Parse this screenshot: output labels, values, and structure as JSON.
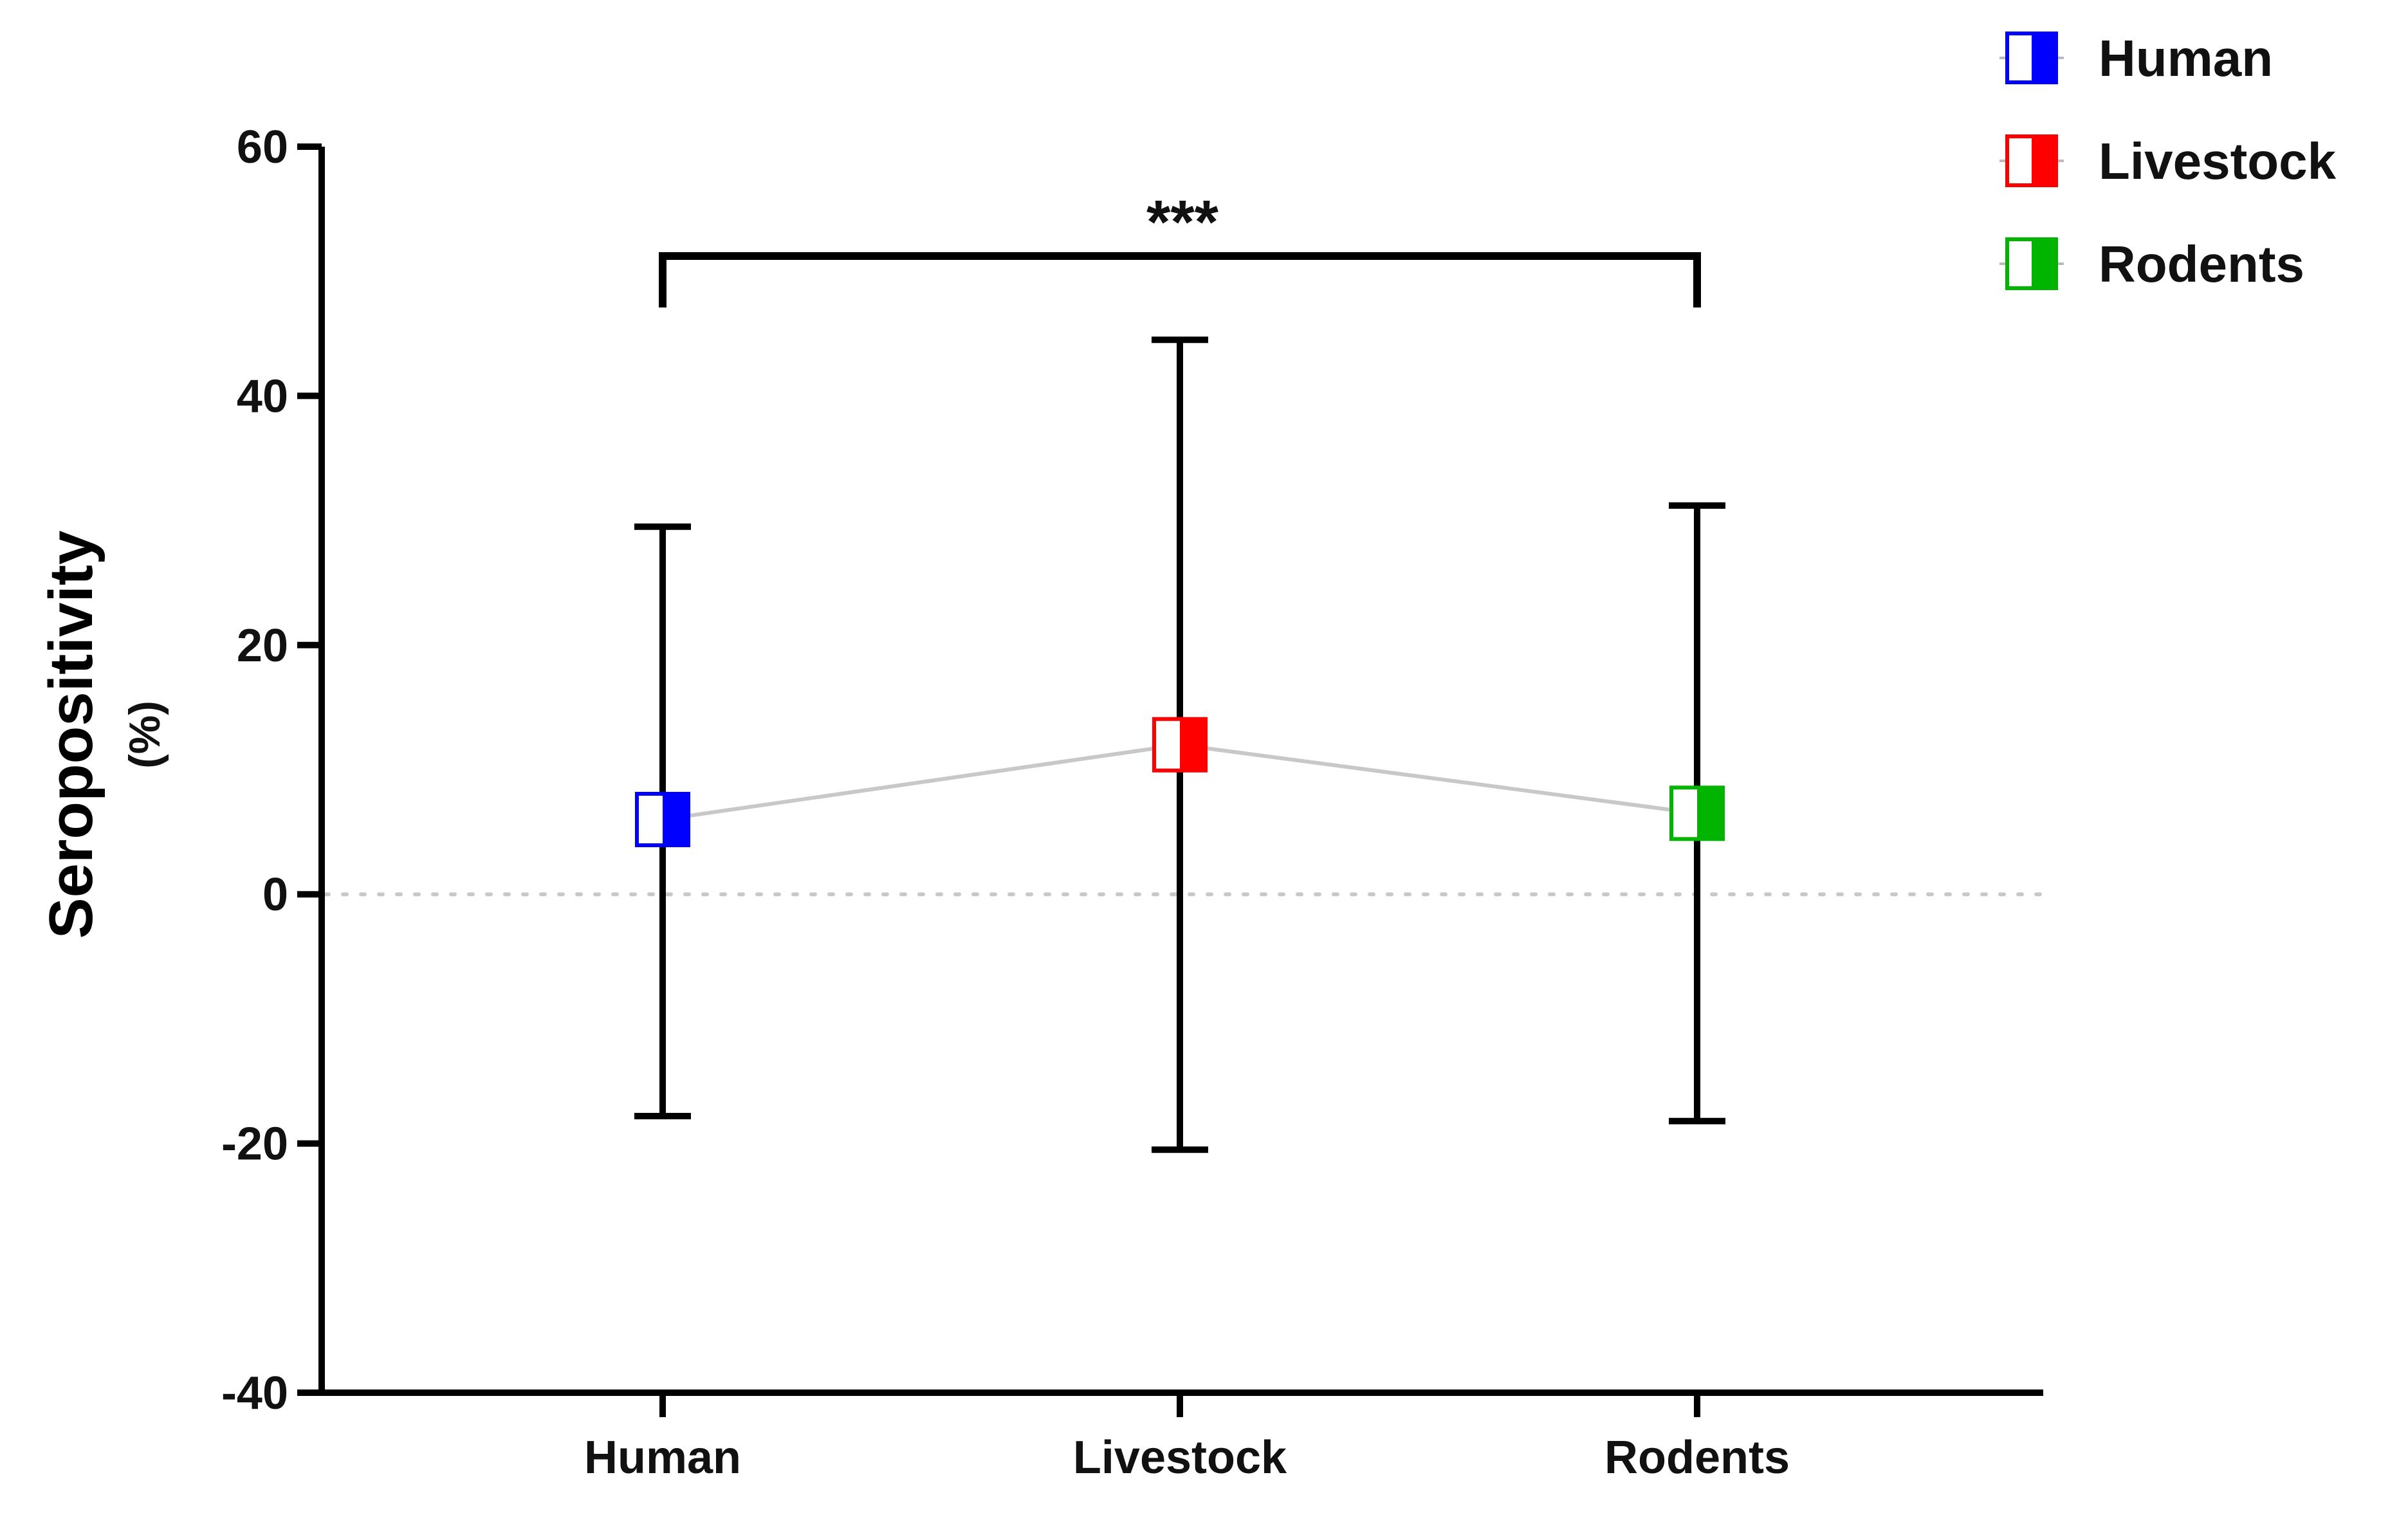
{
  "chart_data": {
    "type": "scatter",
    "categories": [
      "Human",
      "Livestock",
      "Rodents"
    ],
    "series": [
      {
        "name": "Human",
        "category": "Human",
        "mean": 6,
        "error_low": -17.8,
        "error_high": 29.5,
        "color": "#0000ff"
      },
      {
        "name": "Livestock",
        "category": "Livestock",
        "mean": 12,
        "error_low": -20.5,
        "error_high": 44.5,
        "color": "#ff0000"
      },
      {
        "name": "Rodents",
        "category": "Rodents",
        "mean": 6.5,
        "error_low": -18.2,
        "error_high": 31.2,
        "color": "#00b400"
      }
    ],
    "connecting_line_color": "#c8c8c8",
    "reference_line": {
      "y": 0,
      "style": "dotted"
    },
    "ylim": [
      -40,
      60
    ],
    "yticks": [
      60,
      40,
      20,
      0,
      -20,
      -40
    ],
    "ytick_labels": [
      "60",
      "40",
      "20",
      "0",
      "-20",
      "-40"
    ],
    "ylabel": "Seropositivity",
    "ylabel_unit": "(%)",
    "xlabel": "",
    "title": "",
    "legend": {
      "placement": "top-right",
      "entries": [
        "Human",
        "Livestock",
        "Rodents"
      ]
    },
    "significance": {
      "from": "Human",
      "to": "Rodents",
      "label": "***",
      "y": 51
    },
    "grid": false
  }
}
